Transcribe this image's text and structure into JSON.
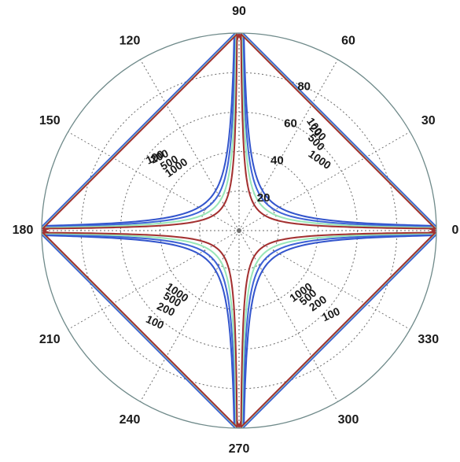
{
  "chart_data": {
    "type": "polar-contour",
    "title": "",
    "angle_ticks": [
      "0",
      "30",
      "60",
      "90",
      "120",
      "150",
      "180",
      "210",
      "240",
      "270",
      "300",
      "330"
    ],
    "radius_ticks": [
      "20",
      "40",
      "60",
      "80"
    ],
    "rlim": [
      0,
      100
    ],
    "grid": true,
    "series": [
      {
        "level": "100",
        "color": "#3355cc",
        "shape_x": 2.4
      },
      {
        "level": "200",
        "color": "#3f63d6",
        "shape_x": 1.9
      },
      {
        "level": "500",
        "color": "#99e6b8",
        "shape_x": 1.45
      },
      {
        "level": "1000",
        "color": "#a33030",
        "shape_x": 1.0
      }
    ],
    "contour_labels": [
      {
        "text": "100",
        "quadrant": 1,
        "r": 90,
        "t": 0.79,
        "angle": 55
      },
      {
        "text": "200",
        "quadrant": 1,
        "r": 88,
        "t": 0.7,
        "angle": 45
      },
      {
        "text": "500",
        "quadrant": 1,
        "r": 82,
        "t": 0.62,
        "angle": 45
      },
      {
        "text": "1000",
        "quadrant": 1,
        "r": 75,
        "t": 0.38,
        "angle": 35
      },
      {
        "text": "100",
        "quadrant": 2,
        "r": 78,
        "t": 0.63,
        "angle": -25
      },
      {
        "text": "200",
        "quadrant": 2,
        "r": 76,
        "t": 0.57,
        "angle": -25
      },
      {
        "text": "500",
        "quadrant": 2,
        "r": 68,
        "t": 0.53,
        "angle": -30
      },
      {
        "text": "1000",
        "quadrant": 2,
        "r": 62,
        "t": 0.5,
        "angle": -35
      },
      {
        "text": "1000",
        "quadrant": 3,
        "r": 62,
        "t": 0.5,
        "angle": 35
      },
      {
        "text": "500",
        "quadrant": 3,
        "r": 68,
        "t": 0.53,
        "angle": 30
      },
      {
        "text": "200",
        "quadrant": 3,
        "r": 76,
        "t": 0.57,
        "angle": 25
      },
      {
        "text": "100",
        "quadrant": 3,
        "r": 88,
        "t": 0.58,
        "angle": 25
      },
      {
        "text": "1000",
        "quadrant": 4,
        "r": 62,
        "t": 0.5,
        "angle": -35
      },
      {
        "text": "500",
        "quadrant": 4,
        "r": 68,
        "t": 0.53,
        "angle": -40
      },
      {
        "text": "200",
        "quadrant": 4,
        "r": 76,
        "t": 0.57,
        "angle": -35
      },
      {
        "text": "100",
        "quadrant": 4,
        "r": 88,
        "t": 0.58,
        "angle": -25
      }
    ]
  }
}
